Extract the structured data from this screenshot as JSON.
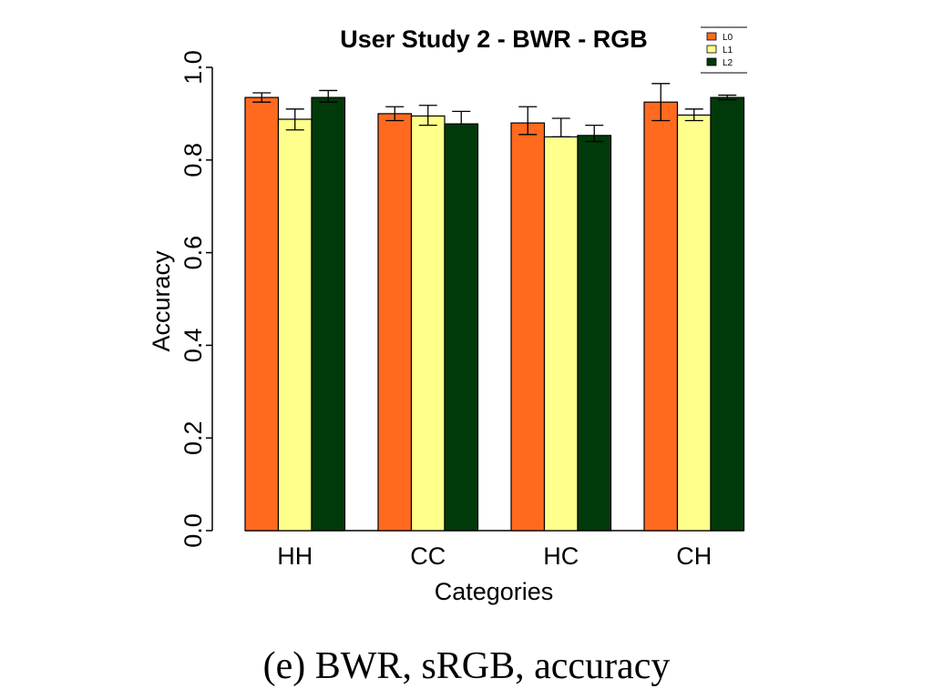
{
  "caption": "(e)  BWR, sRGB, accuracy",
  "chart_data": {
    "type": "bar",
    "title": "User  Study 2 - BWR - RGB",
    "xlabel": "Categories",
    "ylabel": "Accuracy",
    "ylim": [
      0,
      1
    ],
    "yticks": [
      "0.0",
      "0.2",
      "0.4",
      "0.6",
      "0.8",
      "1.0"
    ],
    "categories": [
      "HH",
      "CC",
      "HC",
      "CH"
    ],
    "legend_position": "top-right",
    "series": [
      {
        "name": "L0",
        "color": "#FF6A1F",
        "values": [
          0.935,
          0.9,
          0.88,
          0.925
        ],
        "err_low": [
          0.925,
          0.885,
          0.855,
          0.885
        ],
        "err_high": [
          0.945,
          0.915,
          0.915,
          0.965
        ]
      },
      {
        "name": "L1",
        "color": "#FFFF8C",
        "values": [
          0.888,
          0.895,
          0.85,
          0.897
        ],
        "err_low": [
          0.865,
          0.875,
          0.85,
          0.885
        ],
        "err_high": [
          0.91,
          0.918,
          0.89,
          0.91
        ]
      },
      {
        "name": "L2",
        "color": "#003A0A",
        "values": [
          0.935,
          0.878,
          0.853,
          0.935
        ],
        "err_low": [
          0.925,
          0.878,
          0.84,
          0.93
        ],
        "err_high": [
          0.95,
          0.905,
          0.875,
          0.94
        ]
      }
    ]
  }
}
